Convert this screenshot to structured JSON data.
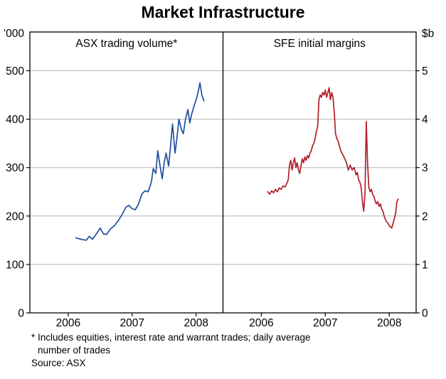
{
  "title": "Market Infrastructure",
  "footnotes": {
    "line1": "* Includes equities, interest rate and warrant trades; daily average",
    "line2": "number of trades",
    "source": "Source: ASX"
  },
  "chart_data": [
    {
      "type": "line",
      "series_name": "asx-trading-volume",
      "title": "ASX trading volume*",
      "ylabel": "’000",
      "axis_side": "left",
      "color": "#1f4f9f",
      "grid_color": "#b4b4b4",
      "legend_position": "none",
      "xlim": [
        2005.4,
        2008.42
      ],
      "ylim": [
        0,
        580
      ],
      "yticks": [
        0,
        100,
        200,
        300,
        400,
        500
      ],
      "xticks": [
        2006,
        2007,
        2008
      ],
      "x": [
        2006.12,
        2006.2,
        2006.28,
        2006.33,
        2006.38,
        2006.45,
        2006.5,
        2006.55,
        2006.6,
        2006.65,
        2006.72,
        2006.78,
        2006.85,
        2006.9,
        2006.95,
        2007.0,
        2007.05,
        2007.1,
        2007.15,
        2007.2,
        2007.25,
        2007.3,
        2007.33,
        2007.37,
        2007.4,
        2007.44,
        2007.47,
        2007.5,
        2007.53,
        2007.57,
        2007.6,
        2007.63,
        2007.67,
        2007.7,
        2007.73,
        2007.77,
        2007.8,
        2007.83,
        2007.87,
        2007.9,
        2007.93,
        2007.97,
        2008.0,
        2008.03,
        2008.06,
        2008.09,
        2008.12
      ],
      "y": [
        155,
        152,
        150,
        158,
        152,
        165,
        175,
        163,
        162,
        172,
        180,
        190,
        205,
        218,
        222,
        215,
        213,
        225,
        245,
        252,
        250,
        270,
        298,
        288,
        335,
        300,
        277,
        310,
        330,
        303,
        345,
        390,
        330,
        362,
        400,
        378,
        370,
        398,
        420,
        392,
        410,
        428,
        440,
        455,
        475,
        450,
        438
      ]
    },
    {
      "type": "line",
      "series_name": "sfe-initial-margins",
      "title": "SFE initial margins",
      "ylabel": "$b",
      "axis_side": "right",
      "color": "#b01f29",
      "grid_color": "#b4b4b4",
      "legend_position": "none",
      "xlim": [
        2005.4,
        2008.42
      ],
      "ylim": [
        0,
        5.8
      ],
      "yticks": [
        0,
        1,
        2,
        3,
        4,
        5
      ],
      "xticks": [
        2006,
        2007,
        2008
      ],
      "x": [
        2006.1,
        2006.13,
        2006.16,
        2006.19,
        2006.22,
        2006.25,
        2006.28,
        2006.31,
        2006.34,
        2006.37,
        2006.4,
        2006.42,
        2006.44,
        2006.46,
        2006.48,
        2006.5,
        2006.52,
        2006.54,
        2006.56,
        2006.58,
        2006.6,
        2006.62,
        2006.64,
        2006.66,
        2006.68,
        2006.7,
        2006.72,
        2006.74,
        2006.76,
        2006.78,
        2006.8,
        2006.82,
        2006.84,
        2006.86,
        2006.88,
        2006.9,
        2006.92,
        2006.94,
        2006.96,
        2006.98,
        2007.0,
        2007.02,
        2007.04,
        2007.06,
        2007.08,
        2007.1,
        2007.12,
        2007.14,
        2007.16,
        2007.18,
        2007.2,
        2007.22,
        2007.24,
        2007.26,
        2007.28,
        2007.3,
        2007.33,
        2007.36,
        2007.39,
        2007.42,
        2007.45,
        2007.48,
        2007.5,
        2007.52,
        2007.54,
        2007.56,
        2007.58,
        2007.6,
        2007.62,
        2007.64,
        2007.66,
        2007.68,
        2007.7,
        2007.72,
        2007.74,
        2007.76,
        2007.78,
        2007.8,
        2007.82,
        2007.84,
        2007.86,
        2007.88,
        2007.9,
        2007.92,
        2007.95,
        2007.98,
        2008.0,
        2008.02,
        2008.04,
        2008.06,
        2008.08,
        2008.1,
        2008.12,
        2008.14
      ],
      "y": [
        2.5,
        2.45,
        2.52,
        2.48,
        2.55,
        2.5,
        2.58,
        2.55,
        2.62,
        2.6,
        2.68,
        2.75,
        3.05,
        3.15,
        2.95,
        3.1,
        3.2,
        3.0,
        3.1,
        2.95,
        2.88,
        3.05,
        3.18,
        3.1,
        3.22,
        3.15,
        3.25,
        3.2,
        3.3,
        3.35,
        3.45,
        3.5,
        3.6,
        3.75,
        3.85,
        4.4,
        4.5,
        4.45,
        4.55,
        4.5,
        4.6,
        4.45,
        4.55,
        4.65,
        4.4,
        4.55,
        4.45,
        4.15,
        3.7,
        3.6,
        3.55,
        3.45,
        3.35,
        3.3,
        3.25,
        3.2,
        3.1,
        2.95,
        3.05,
        2.95,
        3.0,
        2.85,
        2.9,
        2.75,
        2.7,
        2.6,
        2.3,
        2.1,
        2.45,
        3.95,
        3.1,
        2.6,
        2.5,
        2.55,
        2.45,
        2.4,
        2.3,
        2.25,
        2.3,
        2.2,
        2.25,
        2.15,
        2.1,
        2.0,
        1.9,
        1.85,
        1.8,
        1.78,
        1.75,
        1.85,
        1.95,
        2.05,
        2.3,
        2.35
      ]
    }
  ]
}
